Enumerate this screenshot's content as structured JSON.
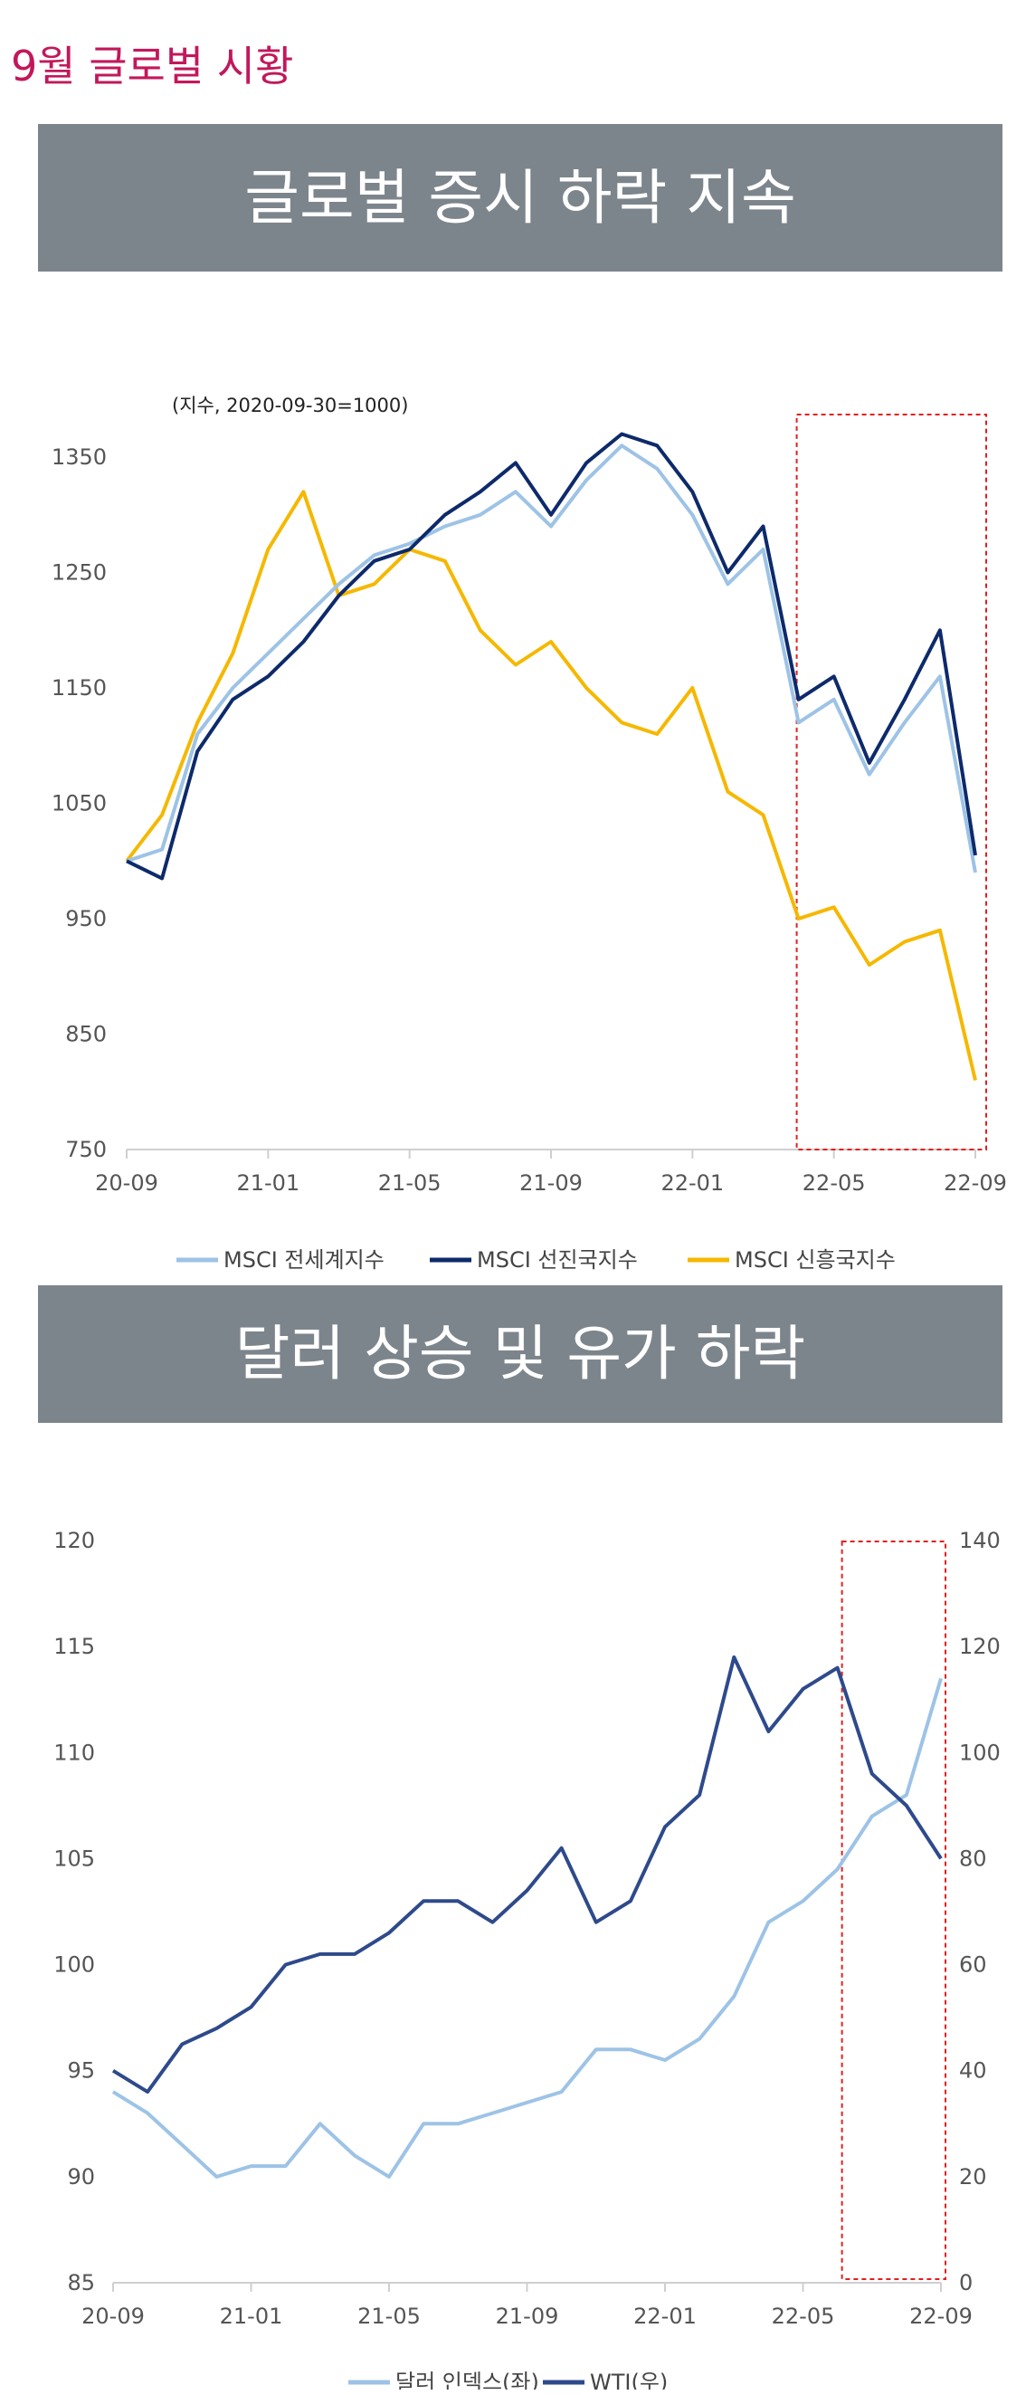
{
  "page": {
    "title": "9월 글로벌 시황",
    "title_color": "#c2185b"
  },
  "sections": [
    {
      "banner": "글로벌 증시 하락 지속"
    },
    {
      "banner": "달러 상승 및 유가 하락"
    }
  ],
  "colors": {
    "banner_bg": "#7d858c",
    "highlight_box": "#e02020"
  },
  "chart_data": [
    {
      "type": "line",
      "title": "",
      "unit_note": "(지수, 2020-09-30=1000)",
      "x_ticks": [
        "20-09",
        "21-01",
        "21-05",
        "21-09",
        "22-01",
        "22-05",
        "22-09"
      ],
      "ylim": [
        750,
        1350
      ],
      "y_ticks": [
        750,
        850,
        950,
        1050,
        1150,
        1250,
        1350
      ],
      "grid": false,
      "legend_position": "bottom",
      "highlight": {
        "x_from": "22-04",
        "x_to": "22-09",
        "style": "red dashed box"
      },
      "series": [
        {
          "name": "MSCI 전세계지수",
          "color": "#9dc3e6",
          "x": [
            "2020-09",
            "2020-10",
            "2020-11",
            "2020-12",
            "2021-01",
            "2021-02",
            "2021-03",
            "2021-04",
            "2021-05",
            "2021-06",
            "2021-07",
            "2021-08",
            "2021-09",
            "2021-10",
            "2021-11",
            "2021-12",
            "2022-01",
            "2022-02",
            "2022-03",
            "2022-04",
            "2022-05",
            "2022-06",
            "2022-07",
            "2022-08",
            "2022-09"
          ],
          "values": [
            1000,
            1010,
            1110,
            1150,
            1180,
            1210,
            1240,
            1265,
            1275,
            1290,
            1300,
            1320,
            1290,
            1330,
            1360,
            1340,
            1300,
            1240,
            1270,
            1120,
            1140,
            1075,
            1120,
            1160,
            990
          ]
        },
        {
          "name": "MSCI 선진국지수",
          "color": "#0d2a6b",
          "x": [
            "2020-09",
            "2020-10",
            "2020-11",
            "2020-12",
            "2021-01",
            "2021-02",
            "2021-03",
            "2021-04",
            "2021-05",
            "2021-06",
            "2021-07",
            "2021-08",
            "2021-09",
            "2021-10",
            "2021-11",
            "2021-12",
            "2022-01",
            "2022-02",
            "2022-03",
            "2022-04",
            "2022-05",
            "2022-06",
            "2022-07",
            "2022-08",
            "2022-09"
          ],
          "values": [
            1000,
            985,
            1095,
            1140,
            1160,
            1190,
            1230,
            1260,
            1270,
            1300,
            1320,
            1345,
            1300,
            1345,
            1370,
            1360,
            1320,
            1250,
            1290,
            1140,
            1160,
            1085,
            1140,
            1200,
            1005
          ]
        },
        {
          "name": "MSCI 신흥국지수",
          "color": "#f5b800",
          "x": [
            "2020-09",
            "2020-10",
            "2020-11",
            "2020-12",
            "2021-01",
            "2021-02",
            "2021-03",
            "2021-04",
            "2021-05",
            "2021-06",
            "2021-07",
            "2021-08",
            "2021-09",
            "2021-10",
            "2021-11",
            "2021-12",
            "2022-01",
            "2022-02",
            "2022-03",
            "2022-04",
            "2022-05",
            "2022-06",
            "2022-07",
            "2022-08",
            "2022-09"
          ],
          "values": [
            1000,
            1040,
            1120,
            1180,
            1270,
            1320,
            1230,
            1240,
            1270,
            1260,
            1200,
            1170,
            1190,
            1150,
            1120,
            1110,
            1150,
            1060,
            1040,
            950,
            960,
            910,
            930,
            940,
            810
          ]
        }
      ]
    },
    {
      "type": "line",
      "title": "",
      "x_ticks": [
        "20-09",
        "21-01",
        "21-05",
        "21-09",
        "22-01",
        "22-05",
        "22-09"
      ],
      "ylim_left": [
        85,
        120
      ],
      "y_ticks_left": [
        85,
        90,
        95,
        100,
        105,
        110,
        115,
        120
      ],
      "ylim_right": [
        0,
        140
      ],
      "y_ticks_right": [
        0,
        20,
        40,
        60,
        80,
        100,
        120,
        140
      ],
      "grid": false,
      "legend_position": "bottom",
      "highlight": {
        "x_from": "22-06",
        "x_to": "22-09",
        "style": "red dashed box"
      },
      "series": [
        {
          "name": "달러 인덱스(좌)",
          "axis": "left",
          "color": "#9dc3e6",
          "x": [
            "2020-09",
            "2020-10",
            "2020-11",
            "2020-12",
            "2021-01",
            "2021-02",
            "2021-03",
            "2021-04",
            "2021-05",
            "2021-06",
            "2021-07",
            "2021-08",
            "2021-09",
            "2021-10",
            "2021-11",
            "2021-12",
            "2022-01",
            "2022-02",
            "2022-03",
            "2022-04",
            "2022-05",
            "2022-06",
            "2022-07",
            "2022-08",
            "2022-09"
          ],
          "values": [
            94,
            93,
            91.5,
            90,
            90.5,
            90.5,
            92.5,
            91,
            90,
            92.5,
            92.5,
            93,
            93.5,
            94,
            96,
            96,
            95.5,
            96.5,
            98.5,
            102,
            103,
            104.5,
            107,
            108,
            113.5
          ]
        },
        {
          "name": "WTI(우)",
          "axis": "right",
          "color": "#2e4a8c",
          "x": [
            "2020-09",
            "2020-10",
            "2020-11",
            "2020-12",
            "2021-01",
            "2021-02",
            "2021-03",
            "2021-04",
            "2021-05",
            "2021-06",
            "2021-07",
            "2021-08",
            "2021-09",
            "2021-10",
            "2021-11",
            "2021-12",
            "2022-01",
            "2022-02",
            "2022-03",
            "2022-04",
            "2022-05",
            "2022-06",
            "2022-07",
            "2022-08",
            "2022-09"
          ],
          "values": [
            40,
            36,
            45,
            48,
            52,
            60,
            62,
            62,
            66,
            72,
            72,
            68,
            74,
            82,
            68,
            72,
            86,
            92,
            118,
            104,
            112,
            116,
            96,
            90,
            80
          ]
        }
      ]
    }
  ]
}
